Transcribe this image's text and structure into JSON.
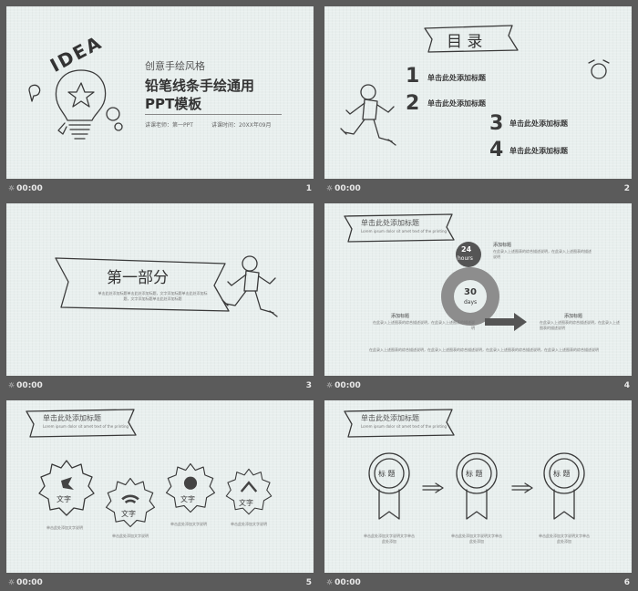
{
  "slides": [
    {
      "num": "1",
      "time": "00:00",
      "subtitle": "创意手绘风格",
      "title_line1": "铅笔线条手绘通用",
      "title_line2": "PPT模板",
      "presenter": "讲课老师：第一PPT",
      "date": "讲课时间：20XX年09月",
      "idea": "IDEA"
    },
    {
      "num": "2",
      "time": "00:00",
      "toc_title": "目 录",
      "items": [
        {
          "n": "1",
          "label": "单击此处添加标题"
        },
        {
          "n": "2",
          "label": "单击此处添加标题"
        },
        {
          "n": "3",
          "label": "单击此处添加标题"
        },
        {
          "n": "4",
          "label": "单击此处添加标题"
        }
      ]
    },
    {
      "num": "3",
      "time": "00:00",
      "section_title": "第一部分",
      "section_body": "单击此处添加标题单击此处添加标题，文字添加标题单击此处添加标题，文字添加标题单击此处添加标题"
    },
    {
      "num": "4",
      "time": "00:00",
      "heading": "单击此处添加标题",
      "heading_sub": "Lorem ipsum dolor sit amet text of the printing",
      "hours_num": "24",
      "hours_label": "hours",
      "days_num": "30",
      "days_label": "days",
      "blocks": [
        {
          "title": "添加标题",
          "body": "在此录入上述图表的综合描述说明，在此录入上述图表的描述说明"
        },
        {
          "title": "添加标题",
          "body": "在此录入上述图表的综合描述说明，在此录入上述图表的描述说明"
        },
        {
          "title": "添加标题",
          "body": "在此录入上述图表的综合描述说明，在此录入上述图表的描述说明"
        }
      ],
      "footer": "在此录入上述图表的综合描述说明，在此录入上述图表的综合描述说明，在此录入上述图表的综合描述说明，在此录入上述图表的综合描述说明"
    },
    {
      "num": "5",
      "time": "00:00",
      "heading": "单击此处添加标题",
      "heading_sub": "Lorem ipsum dolor sit amet text of the printing",
      "gears": [
        {
          "label": "文字",
          "caption": "单击此处添加文字说明"
        },
        {
          "label": "文字",
          "caption": "单击此处添加文字说明"
        },
        {
          "label": "文字",
          "caption": "单击此处添加文字说明"
        },
        {
          "label": "文字",
          "caption": "单击此处添加文字说明"
        }
      ]
    },
    {
      "num": "6",
      "time": "00:00",
      "heading": "单击此处添加标题",
      "heading_sub": "Lorem ipsum dolor sit amet text of the printing",
      "medals": [
        {
          "label": "标 题",
          "caption": "单击此处添加文字说明文字单击此处添加"
        },
        {
          "label": "标 题",
          "caption": "单击此处添加文字说明文字单击此处添加"
        },
        {
          "label": "标 题",
          "caption": "单击此处添加文字说明文字单击此处添加"
        }
      ]
    }
  ]
}
